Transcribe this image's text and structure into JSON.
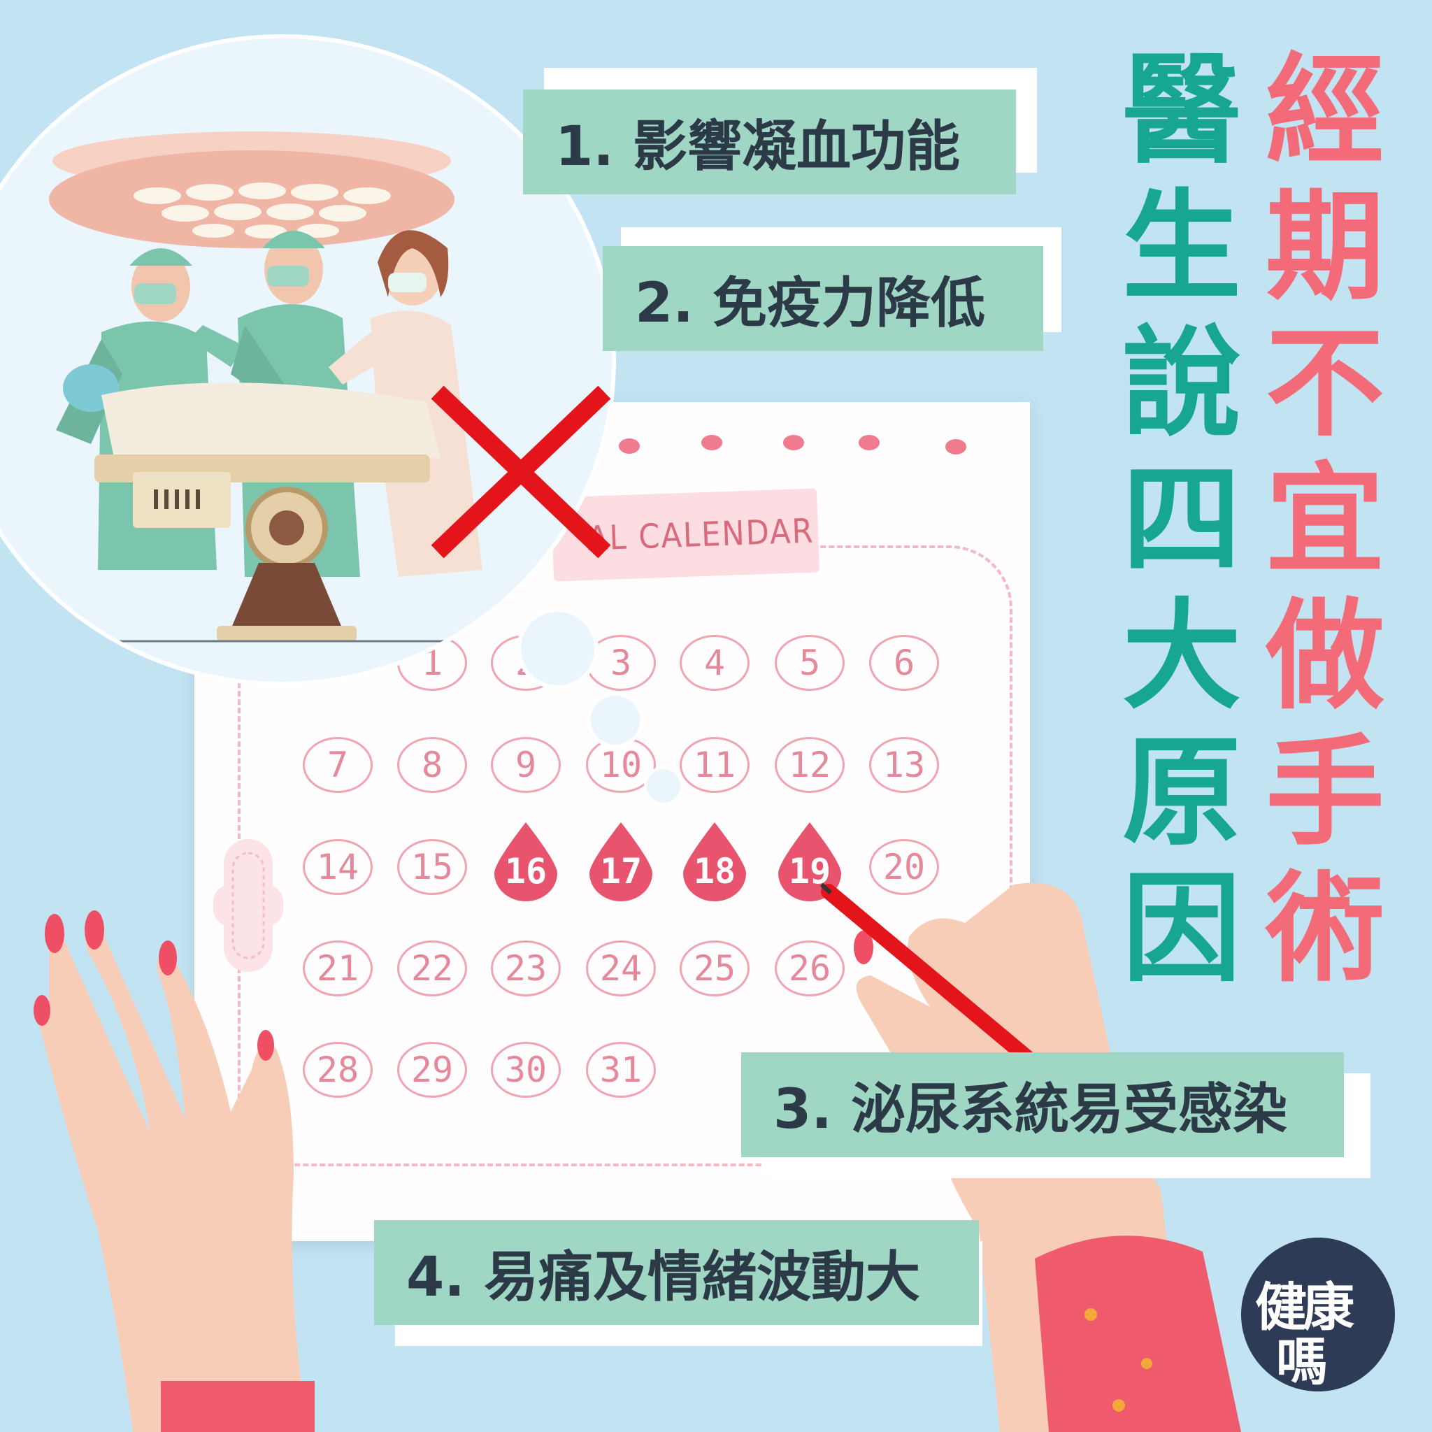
{
  "calendar": {
    "header_text": "AL CALENDAR",
    "weeks": [
      [
        "",
        "1",
        "2",
        "3",
        "4",
        "5",
        "6"
      ],
      [
        "7",
        "8",
        "9",
        "10",
        "11",
        "12",
        "13"
      ],
      [
        "14",
        "15",
        "16",
        "17",
        "18",
        "19",
        "20"
      ],
      [
        "21",
        "22",
        "23",
        "24",
        "25",
        "26",
        ""
      ],
      [
        "28",
        "29",
        "30",
        "31",
        "",
        "",
        ""
      ]
    ],
    "period_days": [
      "16",
      "17",
      "18",
      "19"
    ]
  },
  "reasons": [
    "1. 影響凝血功能",
    "2. 免疫力降低",
    "3. 泌尿系統易受感染",
    "4. 易痛及情緒波動大"
  ],
  "title": {
    "col_right": [
      "經",
      "期",
      "不",
      "宜",
      "做",
      "手",
      "術"
    ],
    "col_left": [
      "醫",
      "生",
      "說",
      "四",
      "大",
      "原",
      "因"
    ]
  },
  "logo": {
    "line1": "健康",
    "line2": "嗎"
  },
  "colors": {
    "background": "#c2e3f2",
    "reason_box": "#9fd7c4",
    "title_pink": "#f36a79",
    "title_teal": "#17a690",
    "period_drop": "#e8546d",
    "cross_mark": "#e4141b",
    "logo_bg": "#2e3b56"
  },
  "icons": [
    "surgery-illustration",
    "red-cross-mark-icon",
    "blood-drop-icon",
    "sanitary-pad-icon",
    "pen-icon",
    "hand-illustration"
  ]
}
